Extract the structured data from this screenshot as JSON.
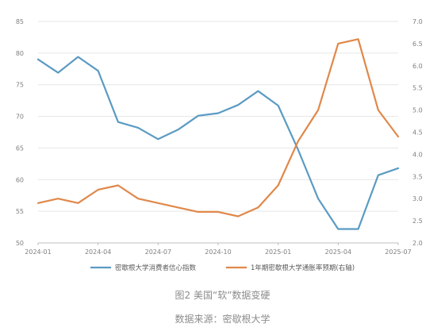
{
  "chart_data": {
    "type": "line",
    "x": [
      "2024-01",
      "2024-02",
      "2024-03",
      "2024-04",
      "2024-05",
      "2024-06",
      "2024-07",
      "2024-08",
      "2024-09",
      "2024-10",
      "2024-11",
      "2024-12",
      "2025-01",
      "2025-02",
      "2025-03",
      "2025-04",
      "2025-05",
      "2025-06",
      "2025-07"
    ],
    "x_tick_labels": [
      "2024-01",
      "2024-04",
      "2024-07",
      "2024-10",
      "2025-01",
      "2025-04",
      "2025-07"
    ],
    "x_tick_indices": [
      0,
      3,
      6,
      9,
      12,
      15,
      18
    ],
    "series": [
      {
        "name": "密歇根大学消费者信心指数",
        "axis": "left",
        "color": "#5b9bc3",
        "values": [
          79.0,
          76.9,
          79.4,
          77.2,
          69.1,
          68.2,
          66.4,
          67.9,
          70.1,
          70.5,
          71.8,
          74.0,
          71.7,
          64.7,
          57.0,
          52.2,
          52.2,
          60.7,
          61.8
        ]
      },
      {
        "name": "1年期密歇根大学通胀率预期(右轴)",
        "axis": "right",
        "color": "#e0884a",
        "values": [
          2.9,
          3.0,
          2.9,
          3.2,
          3.3,
          3.0,
          2.9,
          2.8,
          2.7,
          2.7,
          2.6,
          2.8,
          3.3,
          4.3,
          5.0,
          6.5,
          6.6,
          5.0,
          4.4
        ]
      }
    ],
    "y_left": {
      "min": 50,
      "max": 85,
      "ticks": [
        "50",
        "55",
        "60",
        "65",
        "70",
        "75",
        "80",
        "85"
      ]
    },
    "y_right": {
      "min": 2.0,
      "max": 7.0,
      "ticks": [
        "2.0",
        "2.5",
        "3.0",
        "3.5",
        "4.0",
        "4.5",
        "5.0",
        "5.5",
        "6.0",
        "6.5",
        "7.0"
      ]
    },
    "grid": "horizontal",
    "legend_position": "bottom"
  },
  "caption": {
    "title": "图2 美国“软”数据变硬",
    "source": "数据来源：密歇根大学"
  }
}
